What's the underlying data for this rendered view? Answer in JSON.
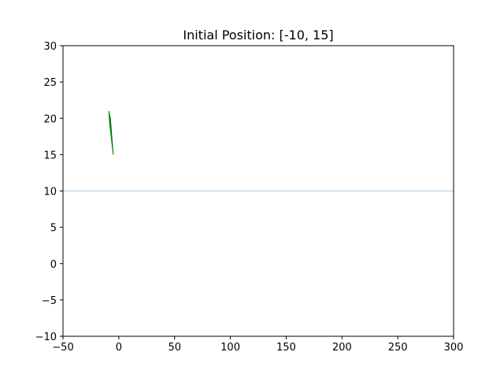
{
  "chart_data": {
    "type": "line",
    "title": "Initial Position: [-10, 15]",
    "xlabel": "",
    "ylabel": "",
    "xlim": [
      -50,
      300
    ],
    "ylim": [
      -10,
      30
    ],
    "x_ticks": [
      -50,
      0,
      50,
      100,
      150,
      200,
      250,
      300
    ],
    "x_tick_labels": [
      "−50",
      "0",
      "50",
      "100",
      "150",
      "200",
      "250",
      "300"
    ],
    "y_ticks": [
      -10,
      -5,
      0,
      5,
      10,
      15,
      20,
      25,
      30
    ],
    "y_tick_labels": [
      "−10",
      "−5",
      "0",
      "5",
      "10",
      "15",
      "20",
      "25",
      "30"
    ],
    "grid": false,
    "reference_line": {
      "y": 10,
      "color": "#a6cbe6"
    },
    "shape": {
      "color": "#008000",
      "points": [
        [
          -9,
          21
        ],
        [
          -8,
          19
        ],
        [
          -5,
          15
        ],
        [
          -5.5,
          16
        ],
        [
          -7.5,
          20
        ]
      ]
    }
  }
}
